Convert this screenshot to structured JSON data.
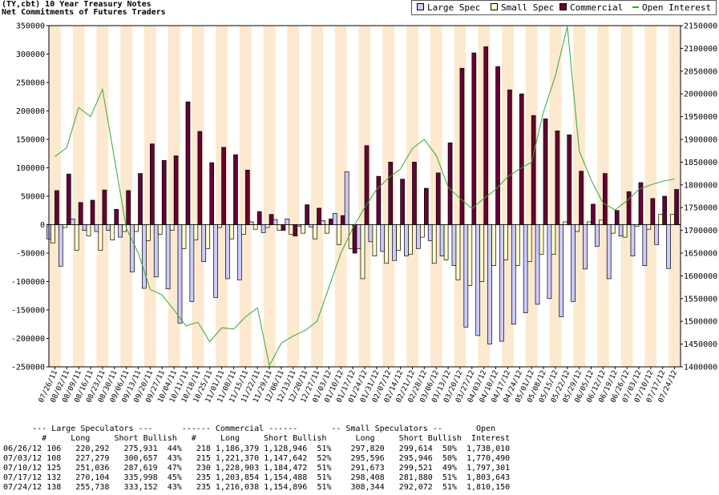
{
  "title_line1": "(TY,cbt) 10 Year Treasury Notes",
  "title_line2": "Net Commitments of Futures Traders",
  "chart_data": {
    "type": "bar",
    "title": "(TY,cbt) 10 Year Treasury Notes",
    "subtitle": "Net Commitments of Futures Traders",
    "legend_position": "top-right",
    "colors": {
      "large_spec": "#ccccff",
      "small_spec": "#ffffcc",
      "commercial": "#660033",
      "open_interest": "#33aa33",
      "band": "#fde9cf"
    },
    "categories": [
      "07/26/11",
      "08/02/11",
      "08/09/11",
      "08/16/11",
      "08/23/11",
      "08/30/11",
      "09/06/11",
      "09/13/11",
      "09/20/11",
      "09/27/11",
      "10/04/11",
      "10/11/11",
      "10/18/11",
      "10/25/11",
      "11/01/11",
      "11/08/11",
      "11/15/11",
      "11/22/11",
      "11/29/11",
      "12/06/11",
      "12/13/11",
      "12/20/11",
      "12/27/11",
      "01/03/12",
      "01/10/12",
      "01/17/12",
      "01/24/12",
      "01/31/12",
      "02/07/12",
      "02/14/12",
      "02/21/12",
      "02/28/12",
      "03/06/12",
      "03/13/12",
      "03/20/12",
      "03/27/12",
      "04/03/12",
      "04/10/12",
      "04/17/12",
      "04/24/12",
      "05/01/12",
      "05/08/12",
      "05/15/12",
      "05/22/12",
      "05/29/12",
      "06/05/12",
      "06/12/12",
      "06/19/12",
      "06/26/12",
      "07/03/12",
      "07/10/12",
      "07/17/12",
      "07/24/12"
    ],
    "left_axis": {
      "min": -250000,
      "max": 350000,
      "ticks": [
        "350000",
        "300000",
        "250000",
        "200000",
        "150000",
        "100000",
        "50000",
        "0",
        "-50000",
        "-100000",
        "-150000",
        "-200000",
        "-250000"
      ]
    },
    "right_axis": {
      "min": 1400000,
      "max": 2150000,
      "ticks": [
        "2150000",
        "2100000",
        "2050000",
        "2000000",
        "1950000",
        "1900000",
        "1850000",
        "1800000",
        "1750000",
        "1700000",
        "1650000",
        "1600000",
        "1550000",
        "1500000",
        "1450000",
        "1400000"
      ]
    },
    "series": [
      {
        "name": "Large Spec",
        "axis": "left",
        "values": [
          -25000,
          -73000,
          10000,
          -10000,
          -12000,
          -10000,
          -22000,
          -83000,
          -112000,
          -92000,
          -113000,
          -173000,
          -135000,
          -65000,
          -128000,
          -95000,
          -97000,
          5000,
          -14000,
          9000,
          10000,
          -3000,
          -4000,
          7000,
          20000,
          93000,
          -42000,
          -30000,
          -47000,
          -63000,
          -55000,
          -42000,
          -28000,
          -55000,
          -72000,
          -180000,
          -195000,
          -210000,
          -205000,
          -175000,
          -155000,
          -140000,
          -130000,
          -162000,
          -135000,
          -78000,
          -38000,
          -95000,
          -20000,
          -55000,
          -72000,
          -35000,
          -77000
        ]
      },
      {
        "name": "Small Spec",
        "axis": "left",
        "values": [
          -32000,
          -5000,
          -45000,
          -20000,
          -45000,
          -27000,
          -12000,
          -12000,
          -28000,
          -17000,
          -10000,
          -42000,
          -27000,
          -42000,
          -5000,
          -25000,
          -17000,
          -8000,
          -5000,
          -10000,
          -17000,
          -15000,
          -25000,
          -15000,
          -35000,
          -42000,
          -95000,
          -55000,
          -68000,
          -45000,
          -52000,
          -22000,
          -68000,
          -62000,
          -97000,
          -107000,
          -100000,
          -72000,
          -62000,
          -72000,
          -65000,
          -52000,
          -52000,
          5000,
          -12000,
          5000,
          8000,
          -15000,
          -22000,
          -3000,
          -8000,
          18000,
          18000
        ]
      },
      {
        "name": "Commercial",
        "axis": "left",
        "values": [
          60000,
          89000,
          39000,
          43000,
          61000,
          27000,
          60000,
          90000,
          142000,
          113000,
          121000,
          216000,
          164000,
          109000,
          136000,
          123000,
          96000,
          23000,
          18000,
          -10000,
          -20000,
          35000,
          29000,
          10000,
          16000,
          -50000,
          139000,
          85000,
          110000,
          80000,
          110000,
          64000,
          91000,
          144000,
          275000,
          302000,
          313000,
          278000,
          237000,
          230000,
          192000,
          186000,
          165000,
          158000,
          94000,
          36000,
          90000,
          25000,
          58000,
          74000,
          46000,
          50000,
          62000
        ]
      },
      {
        "name": "Open Interest",
        "axis": "right",
        "type": "line",
        "values": [
          1862000,
          1882000,
          1970000,
          1950000,
          2010000,
          1858000,
          1705000,
          1650000,
          1570000,
          1558000,
          1525000,
          1490000,
          1498000,
          1455000,
          1486000,
          1483000,
          1510000,
          1530000,
          1403000,
          1452000,
          1468000,
          1480000,
          1500000,
          1575000,
          1650000,
          1705000,
          1750000,
          1790000,
          1815000,
          1835000,
          1880000,
          1900000,
          1865000,
          1795000,
          1770000,
          1748000,
          1770000,
          1790000,
          1818000,
          1835000,
          1850000,
          1960000,
          2040000,
          2148000,
          1875000,
          1810000,
          1760000,
          1745000,
          1765000,
          1790000,
          1800000,
          1808000,
          1813000
        ]
      }
    ]
  },
  "table": {
    "header1": "      --- Large Speculators ---      ------ Commercial ------       -- Small Speculators --       Open",
    "header2": "        #     Long     Short Bullish   #     Long     Short Bullish      Long     Short Bullish  Interest",
    "rows": [
      "06/26/12 106   220,292   275,931  44%   218 1,186,379 1,128,946  51%    297,820   299,614  50%  1,738,010",
      "07/03/12 108   227,279   300,657  43%   215 1,221,370 1,147,642  52%    295,596   295,946  50%  1,770,490",
      "07/10/12 125   251,036   287,619  47%   230 1,228,903 1,184,472  51%    291,673   299,521  49%  1,797,301",
      "07/17/12 132   270,104   335,998  45%   235 1,203,854 1,154,488  51%    298,408   281,880  51%  1,803,643",
      "07/24/12 138   255,738   333,152  43%   235 1,216,038 1,154,896  51%    308,344   292,072  51%  1,810,150"
    ]
  }
}
